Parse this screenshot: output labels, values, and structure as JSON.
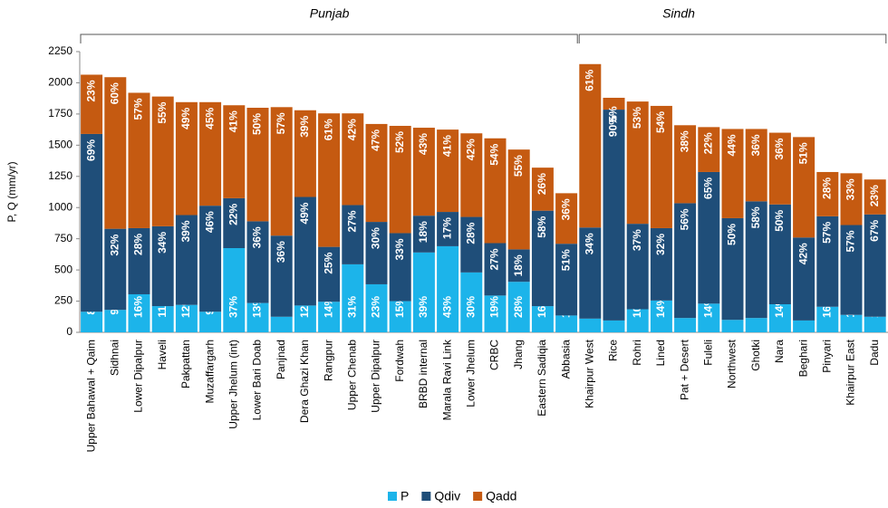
{
  "chart_data": {
    "type": "stacked_bar",
    "groups": [
      "Punjab",
      "Sindh"
    ],
    "ylabel": "P, Q (mm/yr)",
    "categories": [
      "Upper Bahawal + Qaim",
      "Sidhnai",
      "Lower Dipalpur",
      "Haveli",
      "Pakpattan",
      "Muzaffargarh",
      "Upper Jhelum (int)",
      "Lower Bari Doab",
      "Panjnad",
      "Dera Ghazi Khan",
      "Rangpur",
      "Upper Chenab",
      "Upper Dipalpur",
      "Fordwah",
      "BRBD internal",
      "Marala Ravi Link",
      "Lower Jhelum",
      "CRBC",
      "Jhang",
      "Eastern Sadiqia",
      "Abbasia",
      "Khairpur West",
      "Rice",
      "Rohri",
      "Lined",
      "Pat + Desert",
      "Fuleli",
      "Northwest",
      "Ghotki",
      "Nara",
      "Beghari",
      "Pinyari",
      "Khairpur East",
      "Dadu"
    ],
    "series": [
      {
        "name": "P",
        "color": "#1cb4ea",
        "values": [
          165,
          180,
          305,
          210,
          220,
          165,
          675,
          235,
          125,
          215,
          245,
          545,
          385,
          250,
          640,
          690,
          480,
          295,
          405,
          210,
          135,
          110,
          95,
          185,
          255,
          115,
          230,
          100,
          115,
          225,
          95,
          205,
          140,
          125
        ],
        "value_labels": [
          "8%",
          "9%",
          "16%",
          "11%",
          "12%",
          "9%",
          "37%",
          "13%",
          "7%",
          "12%",
          "14%",
          "31%",
          "23%",
          "15%",
          "39%",
          "43%",
          "30%",
          "19%",
          "28%",
          "16%",
          "12%",
          "5%",
          "5%",
          "10%",
          "14%",
          "7%",
          "14%",
          "6%",
          "7%",
          "14%",
          "6%",
          "16%",
          "11%",
          "10%"
        ]
      },
      {
        "name": "Qdiv",
        "color": "#1f4e79",
        "values": [
          1425,
          650,
          530,
          640,
          720,
          850,
          400,
          655,
          650,
          870,
          440,
          475,
          500,
          545,
          295,
          275,
          445,
          420,
          260,
          765,
          575,
          730,
          1690,
          685,
          580,
          920,
          1055,
          815,
          935,
          800,
          665,
          725,
          720,
          820
        ],
        "value_labels": [
          "69%",
          "32%",
          "28%",
          "34%",
          "39%",
          "46%",
          "22%",
          "36%",
          "36%",
          "49%",
          "25%",
          "27%",
          "30%",
          "33%",
          "18%",
          "17%",
          "28%",
          "27%",
          "18%",
          "58%",
          "51%",
          "34%",
          "90%",
          "37%",
          "32%",
          "56%",
          "65%",
          "50%",
          "58%",
          "50%",
          "42%",
          "57%",
          "57%",
          "67%"
        ]
      },
      {
        "name": "Qadd",
        "color": "#c55a11",
        "values": [
          475,
          1215,
          1085,
          1040,
          905,
          830,
          745,
          910,
          1030,
          695,
          1070,
          735,
          785,
          860,
          705,
          660,
          670,
          840,
          800,
          345,
          405,
          1310,
          95,
          980,
          980,
          625,
          360,
          715,
          580,
          575,
          805,
          355,
          415,
          280
        ],
        "value_labels": [
          "23%",
          "60%",
          "57%",
          "55%",
          "49%",
          "45%",
          "41%",
          "50%",
          "57%",
          "39%",
          "61%",
          "42%",
          "47%",
          "52%",
          "43%",
          "41%",
          "42%",
          "54%",
          "55%",
          "26%",
          "36%",
          "61%",
          "5%",
          "53%",
          "54%",
          "38%",
          "22%",
          "44%",
          "36%",
          "36%",
          "51%",
          "28%",
          "33%",
          "23%"
        ]
      }
    ],
    "ylim": [
      0,
      2250
    ],
    "yticks": [
      0,
      250,
      500,
      750,
      1000,
      1250,
      1500,
      1750,
      2000,
      2250
    ],
    "grid": false,
    "legend": "bottom"
  }
}
